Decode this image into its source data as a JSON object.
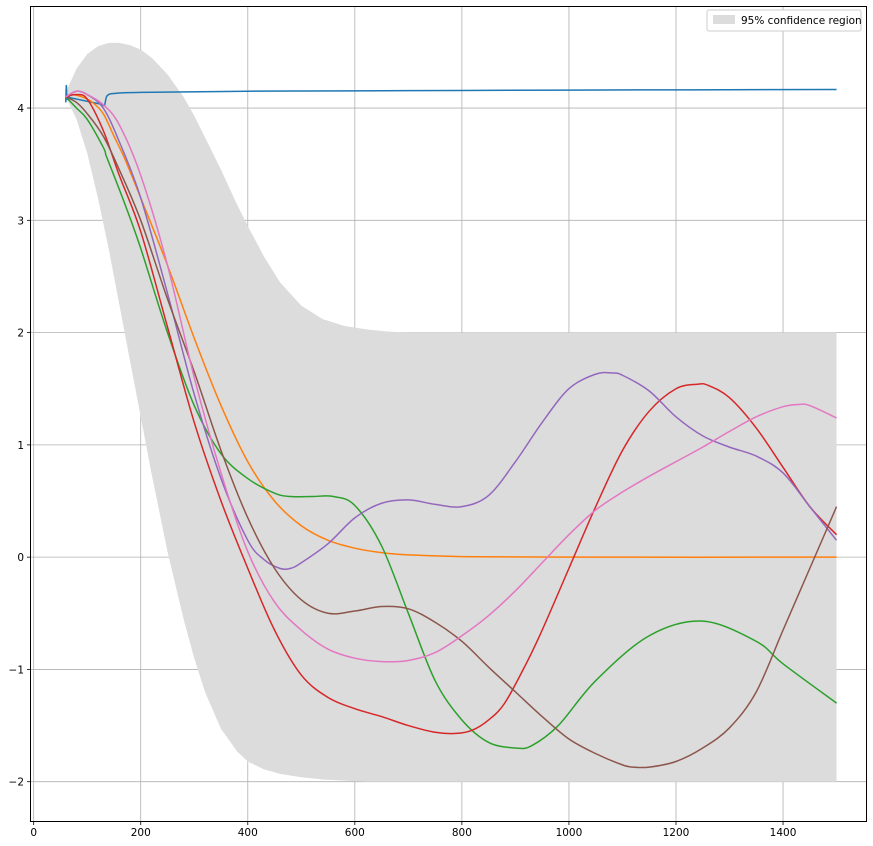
{
  "chart_data": {
    "type": "line",
    "title": "",
    "xlabel": "",
    "ylabel": "",
    "xlim": [
      -5,
      1555
    ],
    "ylim": [
      -2.35,
      4.9
    ],
    "grid": true,
    "x_ticks": [
      0,
      200,
      400,
      600,
      800,
      1000,
      1200,
      1400
    ],
    "x_tick_labels": [
      "0",
      "200",
      "400",
      "600",
      "800",
      "1000",
      "1200",
      "1400"
    ],
    "y_ticks": [
      -2,
      -1,
      0,
      1,
      2,
      3,
      4
    ],
    "y_tick_labels": [
      "−2",
      "−1",
      "0",
      "1",
      "2",
      "3",
      "4"
    ],
    "legend": {
      "position": "top-right",
      "entries": [
        "95% confidence region"
      ]
    },
    "confidence_region": {
      "label": "95% confidence region",
      "color": "#dcdcdc",
      "x": [
        60,
        80,
        100,
        120,
        140,
        160,
        180,
        200,
        220,
        250,
        280,
        300,
        320,
        350,
        380,
        400,
        430,
        460,
        500,
        540,
        580,
        620,
        660,
        700,
        750,
        800,
        900,
        1000,
        1200,
        1500
      ],
      "upper": [
        4.14,
        4.35,
        4.48,
        4.55,
        4.58,
        4.58,
        4.56,
        4.52,
        4.45,
        4.3,
        4.1,
        3.93,
        3.74,
        3.45,
        3.14,
        2.95,
        2.68,
        2.45,
        2.24,
        2.12,
        2.06,
        2.03,
        2.01,
        2.0,
        2.0,
        2.0,
        2.0,
        2.0,
        2.0,
        2.0
      ],
      "lower": [
        4.1,
        3.9,
        3.6,
        3.2,
        2.75,
        2.25,
        1.75,
        1.25,
        0.75,
        0.05,
        -0.55,
        -0.9,
        -1.2,
        -1.53,
        -1.73,
        -1.82,
        -1.89,
        -1.93,
        -1.96,
        -1.98,
        -1.99,
        -2.0,
        -2.0,
        -2.0,
        -2.0,
        -2.0,
        -2.0,
        -2.0,
        -2.0,
        -2.0
      ]
    },
    "series": [
      {
        "color": "#1f77b4",
        "x": [
          60,
          61,
          62,
          64,
          70,
          80,
          100,
          120,
          128,
          132,
          134,
          136,
          140,
          150,
          200,
          400,
          700,
          1000,
          1500
        ],
        "values": [
          4.05,
          4.2,
          4.08,
          4.1,
          4.09,
          4.08,
          4.06,
          4.04,
          4.03,
          4.02,
          4.06,
          4.1,
          4.12,
          4.13,
          4.14,
          4.15,
          4.155,
          4.16,
          4.165
        ]
      },
      {
        "color": "#ff7f0e",
        "x": [
          60,
          70,
          90,
          110,
          130,
          150,
          170,
          200,
          250,
          300,
          350,
          400,
          450,
          500,
          550,
          600,
          650,
          700,
          800,
          1000,
          1500
        ],
        "values": [
          4.1,
          4.12,
          4.1,
          4.05,
          3.95,
          3.75,
          3.55,
          3.2,
          2.6,
          1.95,
          1.35,
          0.85,
          0.5,
          0.28,
          0.15,
          0.08,
          0.04,
          0.02,
          0.005,
          0.0,
          0.0
        ]
      },
      {
        "color": "#2ca02c",
        "x": [
          60,
          80,
          100,
          130,
          135,
          140,
          170,
          200,
          250,
          300,
          350,
          400,
          450,
          480,
          520,
          560,
          600,
          650,
          700,
          750,
          800,
          850,
          900,
          930,
          980,
          1050,
          1150,
          1250,
          1350,
          1400,
          1500
        ],
        "values": [
          4.1,
          4.0,
          3.9,
          3.65,
          3.58,
          3.52,
          3.15,
          2.75,
          2.0,
          1.35,
          0.92,
          0.7,
          0.57,
          0.54,
          0.54,
          0.54,
          0.46,
          0.1,
          -0.5,
          -1.1,
          -1.45,
          -1.65,
          -1.7,
          -1.68,
          -1.5,
          -1.1,
          -0.7,
          -0.57,
          -0.75,
          -0.95,
          -1.3
        ]
      },
      {
        "color": "#d62728",
        "x": [
          60,
          80,
          100,
          130,
          160,
          200,
          250,
          300,
          350,
          400,
          450,
          500,
          550,
          600,
          650,
          700,
          750,
          790,
          820,
          850,
          880,
          920,
          950,
          1000,
          1050,
          1100,
          1150,
          1200,
          1240,
          1260,
          1300,
          1350,
          1400,
          1450,
          1500
        ],
        "values": [
          4.1,
          4.12,
          4.08,
          3.8,
          3.4,
          2.9,
          2.05,
          1.2,
          0.5,
          -0.1,
          -0.65,
          -1.05,
          -1.25,
          -1.35,
          -1.42,
          -1.5,
          -1.56,
          -1.57,
          -1.54,
          -1.45,
          -1.3,
          -0.95,
          -0.65,
          -0.1,
          0.45,
          0.95,
          1.3,
          1.5,
          1.54,
          1.53,
          1.42,
          1.15,
          0.8,
          0.45,
          0.2
        ]
      },
      {
        "color": "#9467bd",
        "x": [
          60,
          80,
          100,
          130,
          160,
          200,
          250,
          300,
          350,
          400,
          430,
          460,
          480,
          500,
          550,
          600,
          650,
          700,
          750,
          800,
          850,
          900,
          950,
          1000,
          1050,
          1080,
          1100,
          1150,
          1200,
          1250,
          1300,
          1350,
          1400,
          1450,
          1500
        ],
        "values": [
          4.1,
          4.15,
          4.12,
          4.0,
          3.7,
          3.2,
          2.35,
          1.45,
          0.7,
          0.15,
          -0.02,
          -0.1,
          -0.1,
          -0.05,
          0.12,
          0.35,
          0.48,
          0.51,
          0.47,
          0.45,
          0.55,
          0.85,
          1.2,
          1.5,
          1.63,
          1.64,
          1.62,
          1.48,
          1.25,
          1.08,
          0.98,
          0.9,
          0.75,
          0.45,
          0.15
        ]
      },
      {
        "color": "#8c564b",
        "x": [
          60,
          80,
          100,
          130,
          160,
          200,
          250,
          300,
          350,
          400,
          450,
          500,
          550,
          600,
          650,
          700,
          750,
          800,
          850,
          900,
          950,
          1000,
          1050,
          1100,
          1120,
          1150,
          1200,
          1250,
          1300,
          1350,
          1400,
          1450,
          1500
        ],
        "values": [
          4.1,
          4.05,
          3.95,
          3.75,
          3.45,
          3.0,
          2.3,
          1.65,
          0.95,
          0.35,
          -0.1,
          -0.38,
          -0.5,
          -0.48,
          -0.44,
          -0.46,
          -0.58,
          -0.75,
          -0.98,
          -1.2,
          -1.42,
          -1.62,
          -1.75,
          -1.85,
          -1.87,
          -1.87,
          -1.82,
          -1.7,
          -1.52,
          -1.2,
          -0.65,
          -0.1,
          0.45
        ]
      },
      {
        "color": "#e377c2",
        "x": [
          60,
          80,
          100,
          130,
          160,
          200,
          250,
          300,
          350,
          400,
          450,
          500,
          550,
          600,
          650,
          700,
          750,
          800,
          850,
          900,
          950,
          1000,
          1050,
          1100,
          1150,
          1200,
          1250,
          1300,
          1350,
          1400,
          1430,
          1450,
          1500
        ],
        "values": [
          4.1,
          4.15,
          4.12,
          4.03,
          3.85,
          3.4,
          2.6,
          1.6,
          0.75,
          0.05,
          -0.4,
          -0.65,
          -0.82,
          -0.9,
          -0.93,
          -0.92,
          -0.85,
          -0.7,
          -0.52,
          -0.3,
          -0.05,
          0.2,
          0.42,
          0.58,
          0.72,
          0.85,
          0.98,
          1.12,
          1.25,
          1.34,
          1.36,
          1.35,
          1.24
        ]
      }
    ]
  }
}
